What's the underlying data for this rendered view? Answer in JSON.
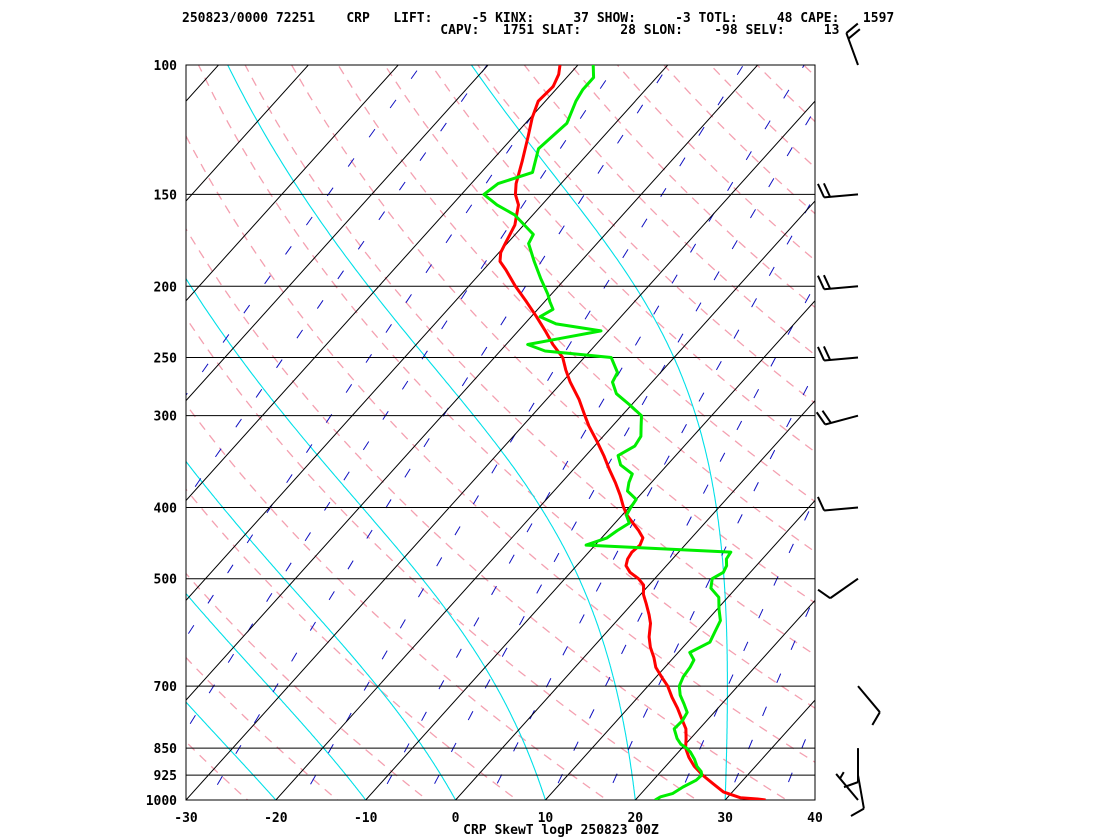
{
  "header": {
    "line1": "250823/0000 72251    CRP   LIFT:     -5 KINX:     37 SHOW:     -3 TOTL:     48 CAPE:   1597",
    "line2": "                                 CAPV:   1751 SLAT:     28 SLON:    -98 SELV:     13"
  },
  "colors": {
    "temperature": "#ff0000",
    "dewpoint": "#00ee00",
    "isotherm": "#000000",
    "dry_adiabat": "#f4a0b0",
    "moist_adiabat": "#00e0e8",
    "mixing_ratio": "#1010c0"
  },
  "chart_data": {
    "type": "line",
    "title": "CRP SkewT logP 250823 00Z",
    "xlabel": "",
    "ylabel": "",
    "xlim": [
      -30,
      40
    ],
    "ylim": [
      1000,
      100
    ],
    "y_scale": "log",
    "x_ticks": [
      -30,
      -20,
      -10,
      0,
      10,
      20,
      30,
      40
    ],
    "y_ticks": [
      100,
      150,
      200,
      250,
      300,
      400,
      500,
      700,
      850,
      925,
      1000
    ],
    "grid": true,
    "series": [
      {
        "color": "#ff0000",
        "points": [
          [
            1000,
            34.5
          ],
          [
            997,
            33.5
          ],
          [
            993,
            31.5
          ],
          [
            975,
            29.0
          ],
          [
            950,
            27.0
          ],
          [
            925,
            25.0
          ],
          [
            900,
            23.2
          ],
          [
            875,
            21.7
          ],
          [
            850,
            20.4
          ],
          [
            825,
            19.5
          ],
          [
            800,
            18.5
          ],
          [
            775,
            17.0
          ],
          [
            750,
            15.5
          ],
          [
            725,
            13.8
          ],
          [
            700,
            12.2
          ],
          [
            680,
            10.6
          ],
          [
            660,
            9.0
          ],
          [
            640,
            7.8
          ],
          [
            620,
            6.4
          ],
          [
            600,
            5.2
          ],
          [
            575,
            4.0
          ],
          [
            560,
            3.0
          ],
          [
            540,
            1.5
          ],
          [
            525,
            0.3
          ],
          [
            510,
            -0.6
          ],
          [
            500,
            -1.8
          ],
          [
            490,
            -3.4
          ],
          [
            480,
            -4.5
          ],
          [
            470,
            -5.0
          ],
          [
            460,
            -5.2
          ],
          [
            450,
            -5.0
          ],
          [
            440,
            -5.4
          ],
          [
            430,
            -6.6
          ],
          [
            420,
            -8.0
          ],
          [
            410,
            -9.4
          ],
          [
            400,
            -10.6
          ],
          [
            385,
            -12.2
          ],
          [
            370,
            -14.0
          ],
          [
            355,
            -16.0
          ],
          [
            340,
            -18.0
          ],
          [
            325,
            -20.2
          ],
          [
            310,
            -22.6
          ],
          [
            300,
            -24.1
          ],
          [
            285,
            -26.4
          ],
          [
            270,
            -29.1
          ],
          [
            260,
            -30.8
          ],
          [
            250,
            -32.4
          ],
          [
            240,
            -34.8
          ],
          [
            230,
            -37.0
          ],
          [
            220,
            -39.4
          ],
          [
            210,
            -42.0
          ],
          [
            200,
            -44.8
          ],
          [
            190,
            -47.5
          ],
          [
            185,
            -49.0
          ],
          [
            180,
            -49.8
          ],
          [
            175,
            -50.2
          ],
          [
            170,
            -50.6
          ],
          [
            165,
            -51.0
          ],
          [
            160,
            -51.8
          ],
          [
            155,
            -52.6
          ],
          [
            150,
            -54.0
          ],
          [
            145,
            -55.0
          ],
          [
            135,
            -56.6
          ],
          [
            125,
            -58.4
          ],
          [
            118,
            -59.8
          ],
          [
            112,
            -60.8
          ],
          [
            107,
            -60.6
          ],
          [
            103,
            -61.2
          ],
          [
            100,
            -62.0
          ]
        ]
      },
      {
        "color": "#00ee00",
        "points": [
          [
            1000,
            22.2
          ],
          [
            990,
            22.5
          ],
          [
            980,
            23.5
          ],
          [
            960,
            24.0
          ],
          [
            940,
            24.8
          ],
          [
            925,
            24.9
          ],
          [
            915,
            24.5
          ],
          [
            900,
            23.5
          ],
          [
            880,
            22.5
          ],
          [
            860,
            21.3
          ],
          [
            850,
            20.5
          ],
          [
            840,
            19.5
          ],
          [
            825,
            18.5
          ],
          [
            800,
            17.2
          ],
          [
            780,
            17.3
          ],
          [
            760,
            17.0
          ],
          [
            740,
            15.8
          ],
          [
            720,
            14.5
          ],
          [
            700,
            13.5
          ],
          [
            680,
            13.0
          ],
          [
            660,
            12.8
          ],
          [
            645,
            12.5
          ],
          [
            630,
            11.3
          ],
          [
            610,
            12.5
          ],
          [
            590,
            12.0
          ],
          [
            570,
            11.5
          ],
          [
            550,
            10.2
          ],
          [
            530,
            9.0
          ],
          [
            515,
            7.2
          ],
          [
            500,
            6.4
          ],
          [
            490,
            7.0
          ],
          [
            480,
            6.7
          ],
          [
            470,
            6.0
          ],
          [
            460,
            5.8
          ],
          [
            450,
            -11.0
          ],
          [
            440,
            -9.4
          ],
          [
            430,
            -9.0
          ],
          [
            420,
            -8.4
          ],
          [
            410,
            -9.5
          ],
          [
            400,
            -9.8
          ],
          [
            390,
            -10.0
          ],
          [
            380,
            -11.8
          ],
          [
            370,
            -12.5
          ],
          [
            360,
            -13.0
          ],
          [
            350,
            -15.2
          ],
          [
            340,
            -16.4
          ],
          [
            330,
            -15.5
          ],
          [
            320,
            -15.8
          ],
          [
            310,
            -16.8
          ],
          [
            300,
            -17.8
          ],
          [
            290,
            -20.2
          ],
          [
            280,
            -22.8
          ],
          [
            270,
            -24.4
          ],
          [
            262,
            -24.8
          ],
          [
            250,
            -27.0
          ],
          [
            245,
            -35.0
          ],
          [
            240,
            -37.6
          ],
          [
            235,
            -34.2
          ],
          [
            230,
            -30.8
          ],
          [
            225,
            -36.5
          ],
          [
            220,
            -39.0
          ],
          [
            215,
            -38.3
          ],
          [
            210,
            -39.4
          ],
          [
            205,
            -40.4
          ],
          [
            195,
            -42.8
          ],
          [
            185,
            -45.2
          ],
          [
            175,
            -47.6
          ],
          [
            170,
            -48.0
          ],
          [
            160,
            -52.0
          ],
          [
            155,
            -55.0
          ],
          [
            150,
            -57.5
          ],
          [
            145,
            -57.0
          ],
          [
            140,
            -54.3
          ],
          [
            130,
            -56.0
          ],
          [
            120,
            -55.4
          ],
          [
            112,
            -56.6
          ],
          [
            108,
            -57.0
          ],
          [
            104,
            -57.0
          ],
          [
            100,
            -58.3
          ]
        ]
      }
    ],
    "wind_barbs": [
      {
        "pressure": 1000,
        "direction": 320,
        "speed": 5
      },
      {
        "pressure": 925,
        "direction": 170,
        "speed": 10
      },
      {
        "pressure": 850,
        "direction": 180,
        "speed": 10
      },
      {
        "pressure": 700,
        "direction": 140,
        "speed": 10
      },
      {
        "pressure": 500,
        "direction": 235,
        "speed": 10
      },
      {
        "pressure": 400,
        "direction": 265,
        "speed": 10
      },
      {
        "pressure": 300,
        "direction": 255,
        "speed": 20
      },
      {
        "pressure": 250,
        "direction": 265,
        "speed": 20
      },
      {
        "pressure": 200,
        "direction": 265,
        "speed": 20
      },
      {
        "pressure": 150,
        "direction": 265,
        "speed": 20
      },
      {
        "pressure": 100,
        "direction": 340,
        "speed": 20
      }
    ]
  }
}
